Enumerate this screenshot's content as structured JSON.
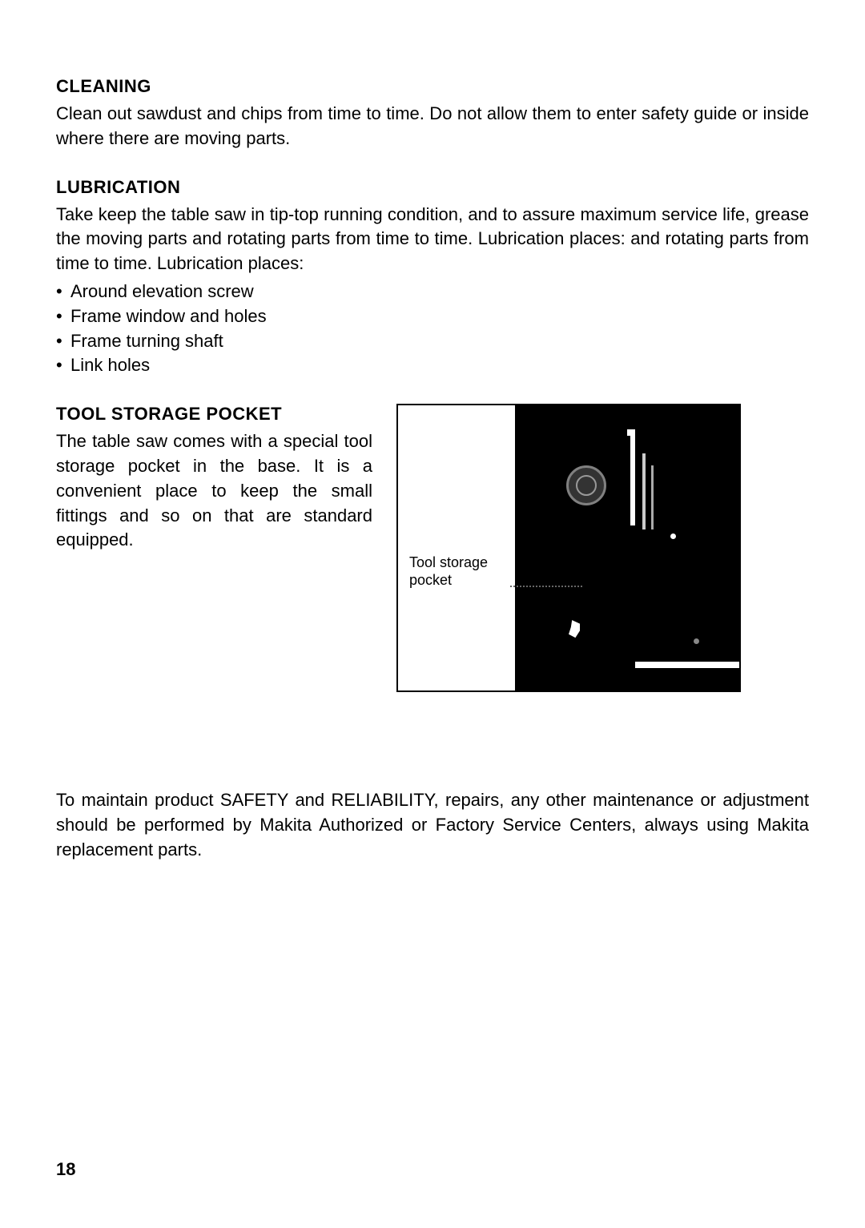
{
  "sections": {
    "cleaning": {
      "heading": "CLEANING",
      "body": "Clean out sawdust and chips from time to time. Do not allow them to enter safety guide or inside where there are moving parts."
    },
    "lubrication": {
      "heading": "LUBRICATION",
      "body": "Take keep the table saw in tip-top running condition, and to assure maximum service life, grease the moving parts and rotating parts from time to time. Lubrication places: and rotating parts from time to time. Lubrication places:",
      "bullets": [
        "Around elevation screw",
        "Frame window and holes",
        "Frame turning shaft",
        "Link holes"
      ]
    },
    "tool_storage": {
      "heading": "TOOL STORAGE POCKET",
      "body": "The table saw comes with a special tool storage pocket in the base. It is a convenient place to keep the small fittings and so on that are standard equipped.",
      "figure_label_line1": "Tool storage",
      "figure_label_line2": "pocket"
    },
    "footer": {
      "body": "To maintain product SAFETY and RELIABILITY, repairs, any other maintenance or adjustment should be performed by Makita Authorized or Factory Service Centers, always using Makita replacement parts."
    }
  },
  "page_number": "18"
}
